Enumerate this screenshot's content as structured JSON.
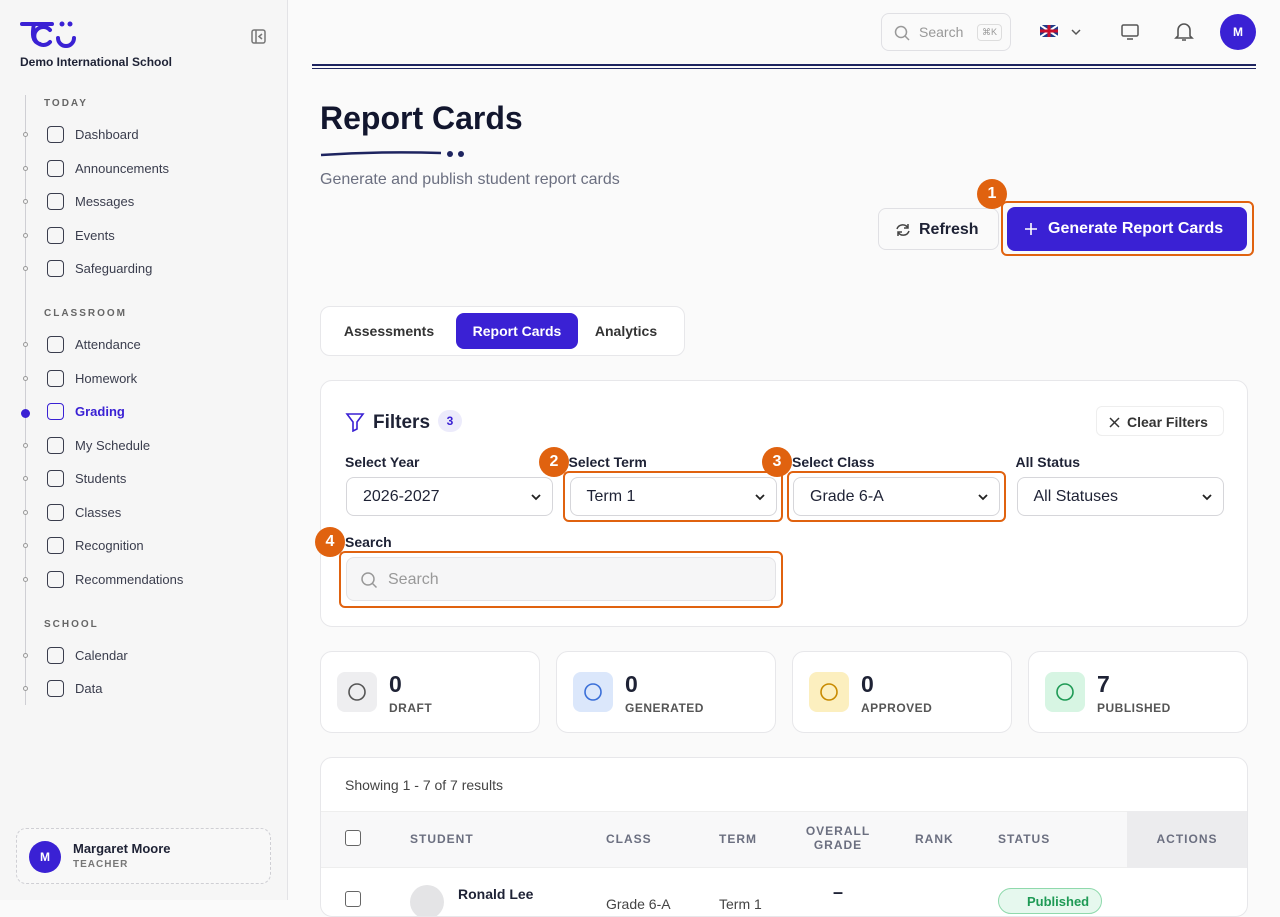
{
  "sidebar": {
    "school_name": "Demo International School",
    "sections": [
      {
        "title": "TODAY",
        "items": [
          "Dashboard",
          "Announcements",
          "Messages",
          "Events",
          "Safeguarding"
        ]
      },
      {
        "title": "CLASSROOM",
        "items": [
          "Attendance",
          "Homework",
          "Grading",
          "My Schedule",
          "Students",
          "Classes",
          "Recognition",
          "Recommendations"
        ]
      },
      {
        "title": "SCHOOL",
        "items": [
          "Calendar",
          "Data"
        ]
      }
    ],
    "user": {
      "initial": "M",
      "name": "Margaret Moore",
      "role": "TEACHER"
    }
  },
  "topbar": {
    "search_placeholder": "Search",
    "shortcut": "⌘K",
    "avatar": "M"
  },
  "header": {
    "title": "Report Cards",
    "subtitle": "Generate and publish student report cards"
  },
  "actions": {
    "refresh": "Refresh",
    "generate": "Generate Report Cards"
  },
  "tabs": [
    "Assessments",
    "Report Cards",
    "Analytics"
  ],
  "filters": {
    "title": "Filters",
    "count": 3,
    "clear": "Clear Filters",
    "fields": [
      {
        "label": "Select Year",
        "value": "2026-2027"
      },
      {
        "label": "Select Term",
        "value": "Term 1"
      },
      {
        "label": "Select Class",
        "value": "Grade 6-A"
      },
      {
        "label": "All Status",
        "value": "All Statuses"
      }
    ],
    "search_label": "Search",
    "search_placeholder": "Search"
  },
  "stats": [
    {
      "value": 0,
      "label": "DRAFT"
    },
    {
      "value": 0,
      "label": "GENERATED"
    },
    {
      "value": 0,
      "label": "APPROVED"
    },
    {
      "value": 7,
      "label": "PUBLISHED"
    }
  ],
  "table": {
    "summary": "Showing 1 - 7 of 7 results",
    "columns": [
      "STUDENT",
      "CLASS",
      "TERM",
      "OVERALL GRADE",
      "RANK",
      "STATUS",
      "ACTIONS"
    ],
    "rows": [
      {
        "student": "Ronald Lee",
        "class": "Grade 6-A",
        "term": "Term 1",
        "grade": "–",
        "status": "Published"
      }
    ]
  },
  "callouts": [
    1,
    2,
    3,
    4
  ]
}
